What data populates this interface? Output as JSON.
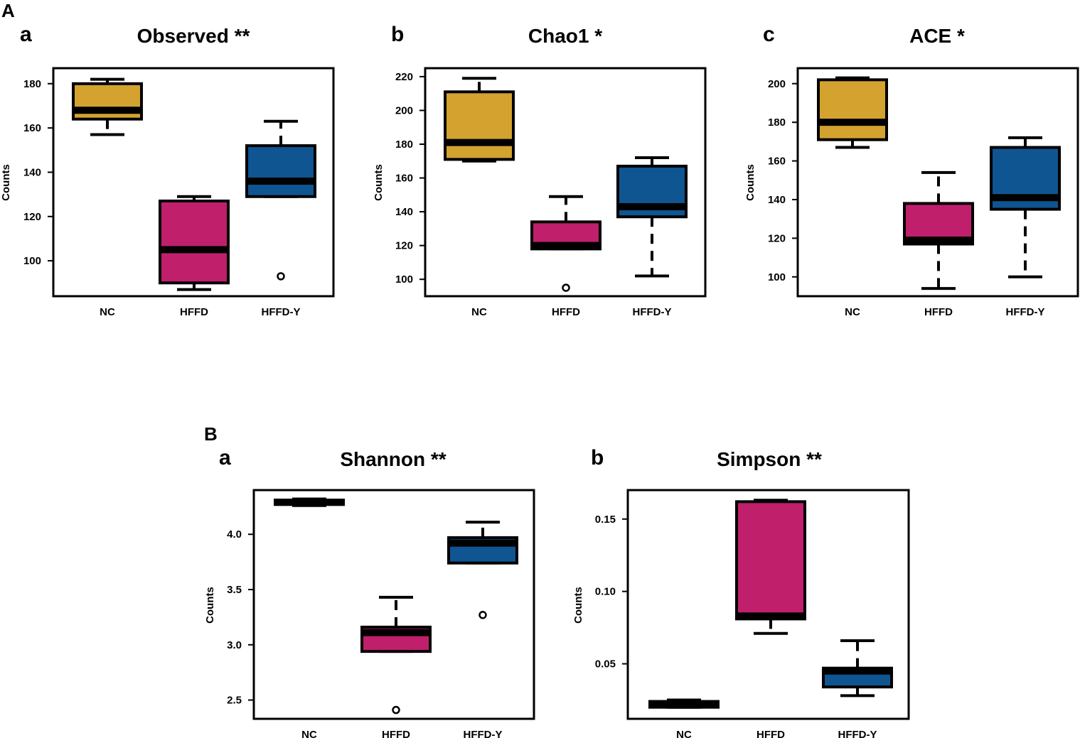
{
  "chart_data": [
    {
      "type": "box",
      "panel": "A",
      "sublabel": "a",
      "title": "Observed **",
      "ylabel": "Counts",
      "categories": [
        "NC",
        "HFFD",
        "HFFD-Y"
      ],
      "ylim": [
        84,
        187
      ],
      "yticks": [
        100,
        120,
        140,
        160,
        180
      ],
      "ytick_labels": [
        "100",
        "120",
        "140",
        "160",
        "180"
      ],
      "colors": [
        "#D4A22F",
        "#C01F6C",
        "#0F5591"
      ],
      "boxes": [
        {
          "whisker_low": 157,
          "q1": 164,
          "median": 168,
          "q3": 180,
          "whisker_high": 182,
          "outliers": []
        },
        {
          "whisker_low": 87,
          "q1": 90,
          "median": 105,
          "q3": 127,
          "whisker_high": 129,
          "outliers": []
        },
        {
          "whisker_low": 129,
          "q1": 129,
          "median": 136,
          "q3": 152,
          "whisker_high": 163,
          "outliers": [
            93
          ]
        }
      ]
    },
    {
      "type": "box",
      "panel": "A",
      "sublabel": "b",
      "title": "Chao1 *",
      "ylabel": "Counts",
      "categories": [
        "NC",
        "HFFD",
        "HFFD-Y"
      ],
      "ylim": [
        90,
        225
      ],
      "yticks": [
        100,
        120,
        140,
        160,
        180,
        200,
        220
      ],
      "ytick_labels": [
        "100",
        "120",
        "140",
        "160",
        "180",
        "200",
        "220"
      ],
      "colors": [
        "#D4A22F",
        "#C01F6C",
        "#0F5591"
      ],
      "boxes": [
        {
          "whisker_low": 170,
          "q1": 171,
          "median": 181,
          "q3": 211,
          "whisker_high": 219,
          "outliers": []
        },
        {
          "whisker_low": 118,
          "q1": 118,
          "median": 120,
          "q3": 134,
          "whisker_high": 149,
          "outliers": [
            95
          ]
        },
        {
          "whisker_low": 102,
          "q1": 137,
          "median": 143,
          "q3": 167,
          "whisker_high": 172,
          "outliers": []
        }
      ]
    },
    {
      "type": "box",
      "panel": "A",
      "sublabel": "c",
      "title": "ACE *",
      "ylabel": "Counts",
      "categories": [
        "NC",
        "HFFD",
        "HFFD-Y"
      ],
      "ylim": [
        90,
        208
      ],
      "yticks": [
        100,
        120,
        140,
        160,
        180,
        200
      ],
      "ytick_labels": [
        "100",
        "120",
        "140",
        "160",
        "180",
        "200"
      ],
      "colors": [
        "#D4A22F",
        "#C01F6C",
        "#0F5591"
      ],
      "boxes": [
        {
          "whisker_low": 167,
          "q1": 171,
          "median": 180,
          "q3": 202,
          "whisker_high": 203,
          "outliers": []
        },
        {
          "whisker_low": 94,
          "q1": 117,
          "median": 119,
          "q3": 138,
          "whisker_high": 154,
          "outliers": []
        },
        {
          "whisker_low": 100,
          "q1": 135,
          "median": 141,
          "q3": 167,
          "whisker_high": 172,
          "outliers": []
        }
      ]
    },
    {
      "type": "box",
      "panel": "B",
      "sublabel": "a",
      "title": "Shannon **",
      "ylabel": "Counts",
      "categories": [
        "NC",
        "HFFD",
        "HFFD-Y"
      ],
      "ylim": [
        2.33,
        4.4
      ],
      "yticks": [
        2.5,
        3.0,
        3.5,
        4.0
      ],
      "ytick_labels": [
        "2.5",
        "3.0",
        "3.5",
        "4.0"
      ],
      "colors": [
        "#D4A22F",
        "#C01F6C",
        "#0F5591"
      ],
      "boxes": [
        {
          "whisker_low": 4.26,
          "q1": 4.27,
          "median": 4.29,
          "q3": 4.31,
          "whisker_high": 4.32,
          "outliers": []
        },
        {
          "whisker_low": 2.94,
          "q1": 2.94,
          "median": 3.11,
          "q3": 3.16,
          "whisker_high": 3.43,
          "outliers": [
            2.41
          ]
        },
        {
          "whisker_low": 3.74,
          "q1": 3.74,
          "median": 3.92,
          "q3": 3.97,
          "whisker_high": 4.11,
          "outliers": [
            3.27
          ]
        }
      ]
    },
    {
      "type": "box",
      "panel": "B",
      "sublabel": "b",
      "title": "Simpson **",
      "ylabel": "Counts",
      "categories": [
        "NC",
        "HFFD",
        "HFFD-Y"
      ],
      "ylim": [
        0.012,
        0.17
      ],
      "yticks": [
        0.05,
        0.1,
        0.15
      ],
      "ytick_labels": [
        "0.05",
        "0.10",
        "0.15"
      ],
      "colors": [
        "#D4A22F",
        "#C01F6C",
        "#0F5591"
      ],
      "boxes": [
        {
          "whisker_low": 0.02,
          "q1": 0.02,
          "median": 0.022,
          "q3": 0.024,
          "whisker_high": 0.025,
          "outliers": []
        },
        {
          "whisker_low": 0.071,
          "q1": 0.081,
          "median": 0.083,
          "q3": 0.162,
          "whisker_high": 0.163,
          "outliers": []
        },
        {
          "whisker_low": 0.028,
          "q1": 0.034,
          "median": 0.045,
          "q3": 0.047,
          "whisker_high": 0.066,
          "outliers": []
        }
      ]
    }
  ],
  "panel_labels": {
    "A": "A",
    "B": "B"
  }
}
